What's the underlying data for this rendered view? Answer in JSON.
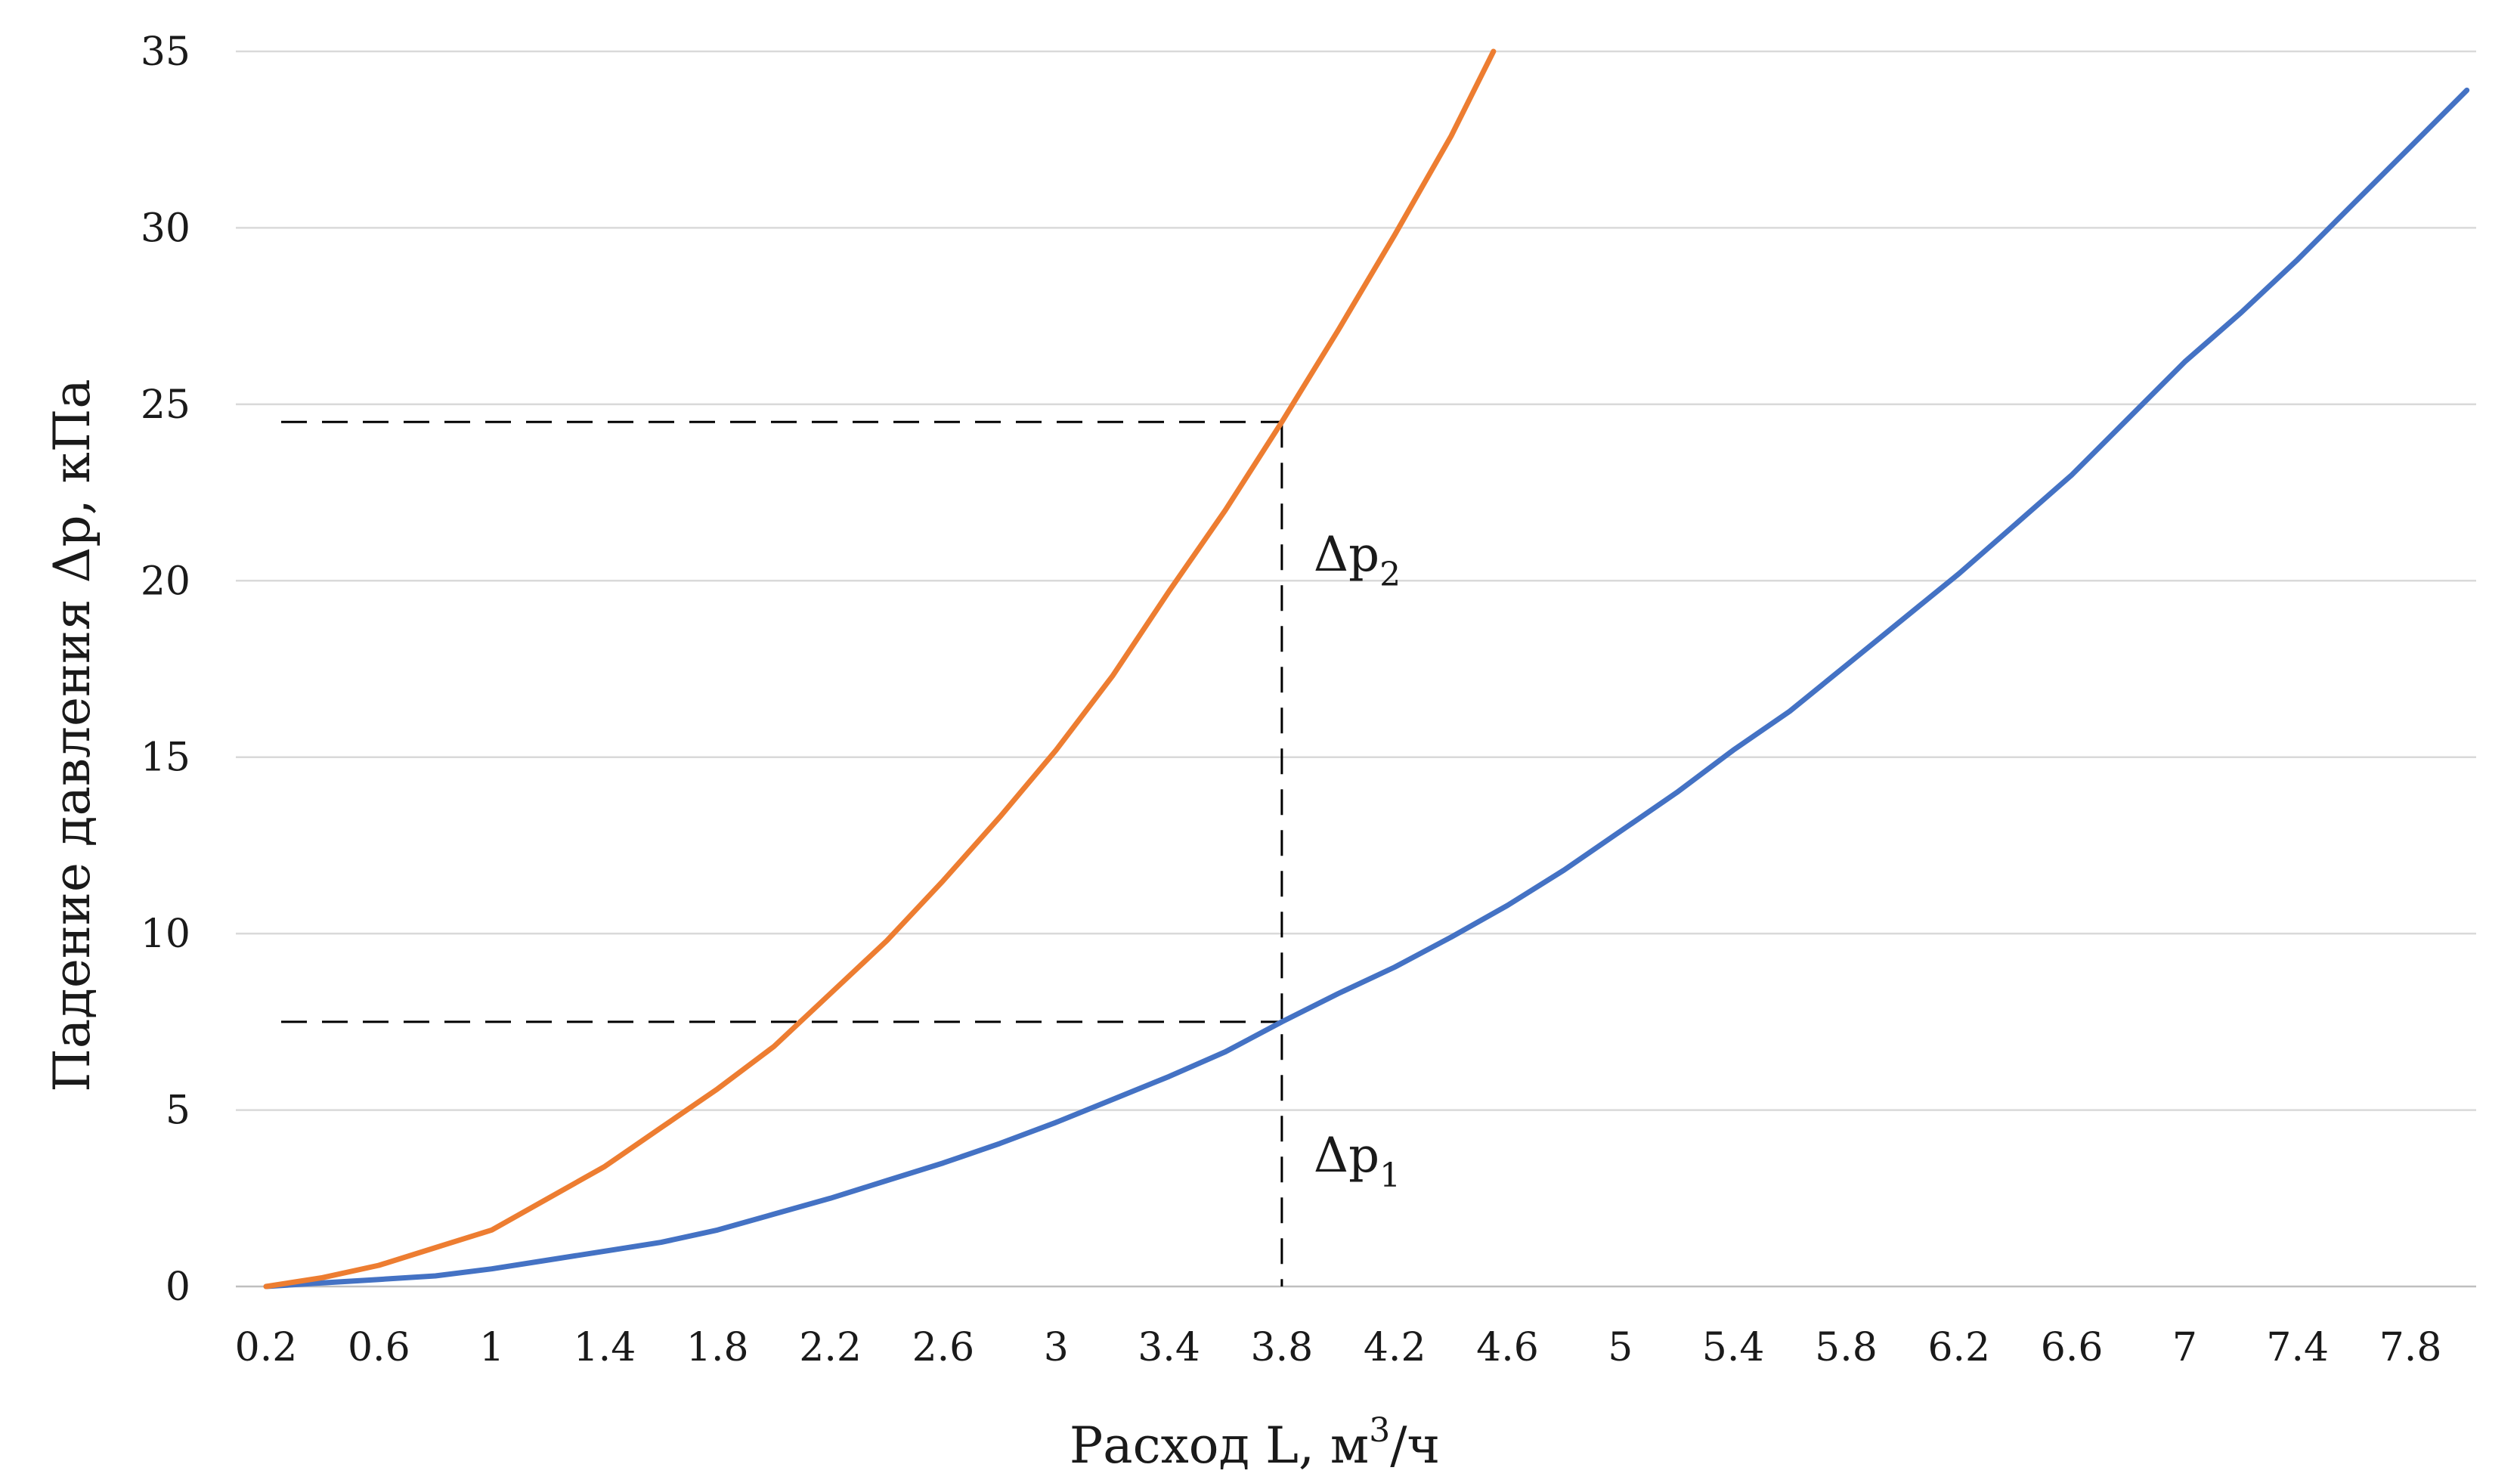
{
  "chart_data": {
    "type": "line",
    "xlabel": "Расход L, м",
    "xlabel_sup": "3",
    "xlabel_suffix": "/ч",
    "ylabel": "Падение давления Δp, кПа",
    "ylim": [
      0,
      35
    ],
    "yticks": [
      0,
      5,
      10,
      15,
      20,
      25,
      30,
      35
    ],
    "xlim": [
      0.2,
      8.0
    ],
    "xticks": [
      "0.2",
      "0.6",
      "1",
      "1.4",
      "1.8",
      "2.2",
      "2.6",
      "3",
      "3.4",
      "3.8",
      "4.2",
      "4.6",
      "5",
      "5.4",
      "5.8",
      "6.2",
      "6.6",
      "7",
      "7.4",
      "7.8"
    ],
    "grid": "horizontal",
    "legend": "none",
    "series": [
      {
        "color": "#4472C4",
        "x": [
          0.2,
          0.4,
          0.6,
          0.8,
          1.0,
          1.2,
          1.4,
          1.6,
          1.8,
          2.0,
          2.2,
          2.4,
          2.6,
          2.8,
          3.0,
          3.2,
          3.4,
          3.6,
          3.8,
          4.0,
          4.2,
          4.4,
          4.6,
          4.8,
          5.0,
          5.2,
          5.4,
          5.6,
          5.8,
          6.0,
          6.2,
          6.4,
          6.6,
          6.8,
          7.0,
          7.2,
          7.4,
          7.6,
          7.8,
          8.0
        ],
        "y": [
          0.0,
          0.1,
          0.2,
          0.3,
          0.5,
          0.75,
          1.0,
          1.25,
          1.6,
          2.05,
          2.5,
          3.0,
          3.5,
          4.05,
          4.65,
          5.3,
          5.95,
          6.65,
          7.5,
          8.3,
          9.05,
          9.9,
          10.8,
          11.8,
          12.9,
          14.0,
          15.2,
          16.3,
          17.6,
          18.9,
          20.2,
          21.6,
          23.0,
          24.6,
          26.2,
          27.6,
          29.1,
          30.7,
          32.3,
          33.9
        ]
      },
      {
        "color": "#ED7D31",
        "x": [
          0.2,
          0.4,
          0.6,
          0.8,
          1.0,
          1.2,
          1.4,
          1.6,
          1.8,
          2.0,
          2.2,
          2.4,
          2.6,
          2.8,
          3.0,
          3.2,
          3.4,
          3.6,
          3.8,
          4.0,
          4.2,
          4.4,
          4.55
        ],
        "y": [
          0.0,
          0.25,
          0.6,
          1.1,
          1.6,
          2.5,
          3.4,
          4.5,
          5.6,
          6.8,
          8.3,
          9.8,
          11.5,
          13.3,
          15.2,
          17.3,
          19.7,
          22.0,
          24.5,
          27.1,
          29.8,
          32.6,
          35.0
        ]
      }
    ],
    "annotations": [
      {
        "text": "Δp",
        "subscript": "2",
        "x": 3.8,
        "y": 24.5
      },
      {
        "text": "Δp",
        "subscript": "1",
        "x": 3.8,
        "y": 7.5
      }
    ],
    "guide_lines": {
      "x": 3.8,
      "y_levels": [
        24.5,
        7.5
      ]
    }
  }
}
